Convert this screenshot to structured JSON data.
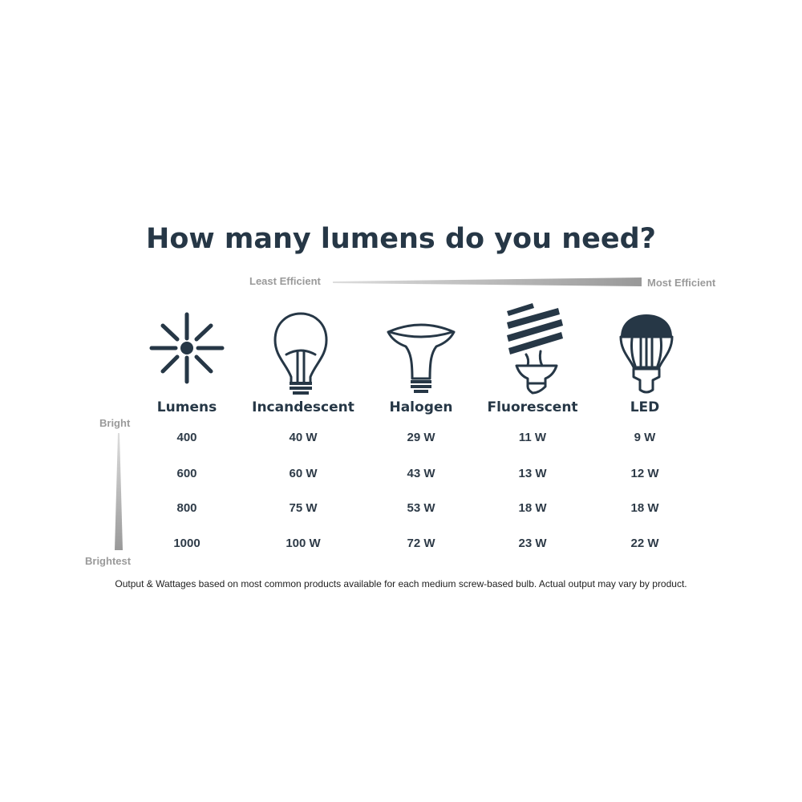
{
  "title": "How many lumens do you need?",
  "efficiency_scale": {
    "left_label": "Least Efficient",
    "right_label": "Most Efficient"
  },
  "brightness_scale": {
    "top_label": "Bright",
    "bottom_label": "Brightest"
  },
  "colors": {
    "primary": "#263746",
    "scale_grey": "#9a9a9a"
  },
  "icons": [
    "sun-burst-icon",
    "incandescent-bulb-icon",
    "halogen-bulb-icon",
    "fluorescent-bulb-icon",
    "led-bulb-icon"
  ],
  "chart_data": {
    "type": "table",
    "columns": [
      "Lumens",
      "Incandescent",
      "Halogen",
      "Fluorescent",
      "LED"
    ],
    "rows": [
      [
        "400",
        "40 W",
        "29 W",
        "11 W",
        "9 W"
      ],
      [
        "600",
        "60 W",
        "43 W",
        "13 W",
        "12 W"
      ],
      [
        "800",
        "75 W",
        "53 W",
        "18 W",
        "18 W"
      ],
      [
        "1000",
        "100 W",
        "72 W",
        "23 W",
        "22 W"
      ]
    ]
  },
  "footnote": "Output & Wattages based on most common products available for each medium screw-based bulb. Actual output may vary by product."
}
